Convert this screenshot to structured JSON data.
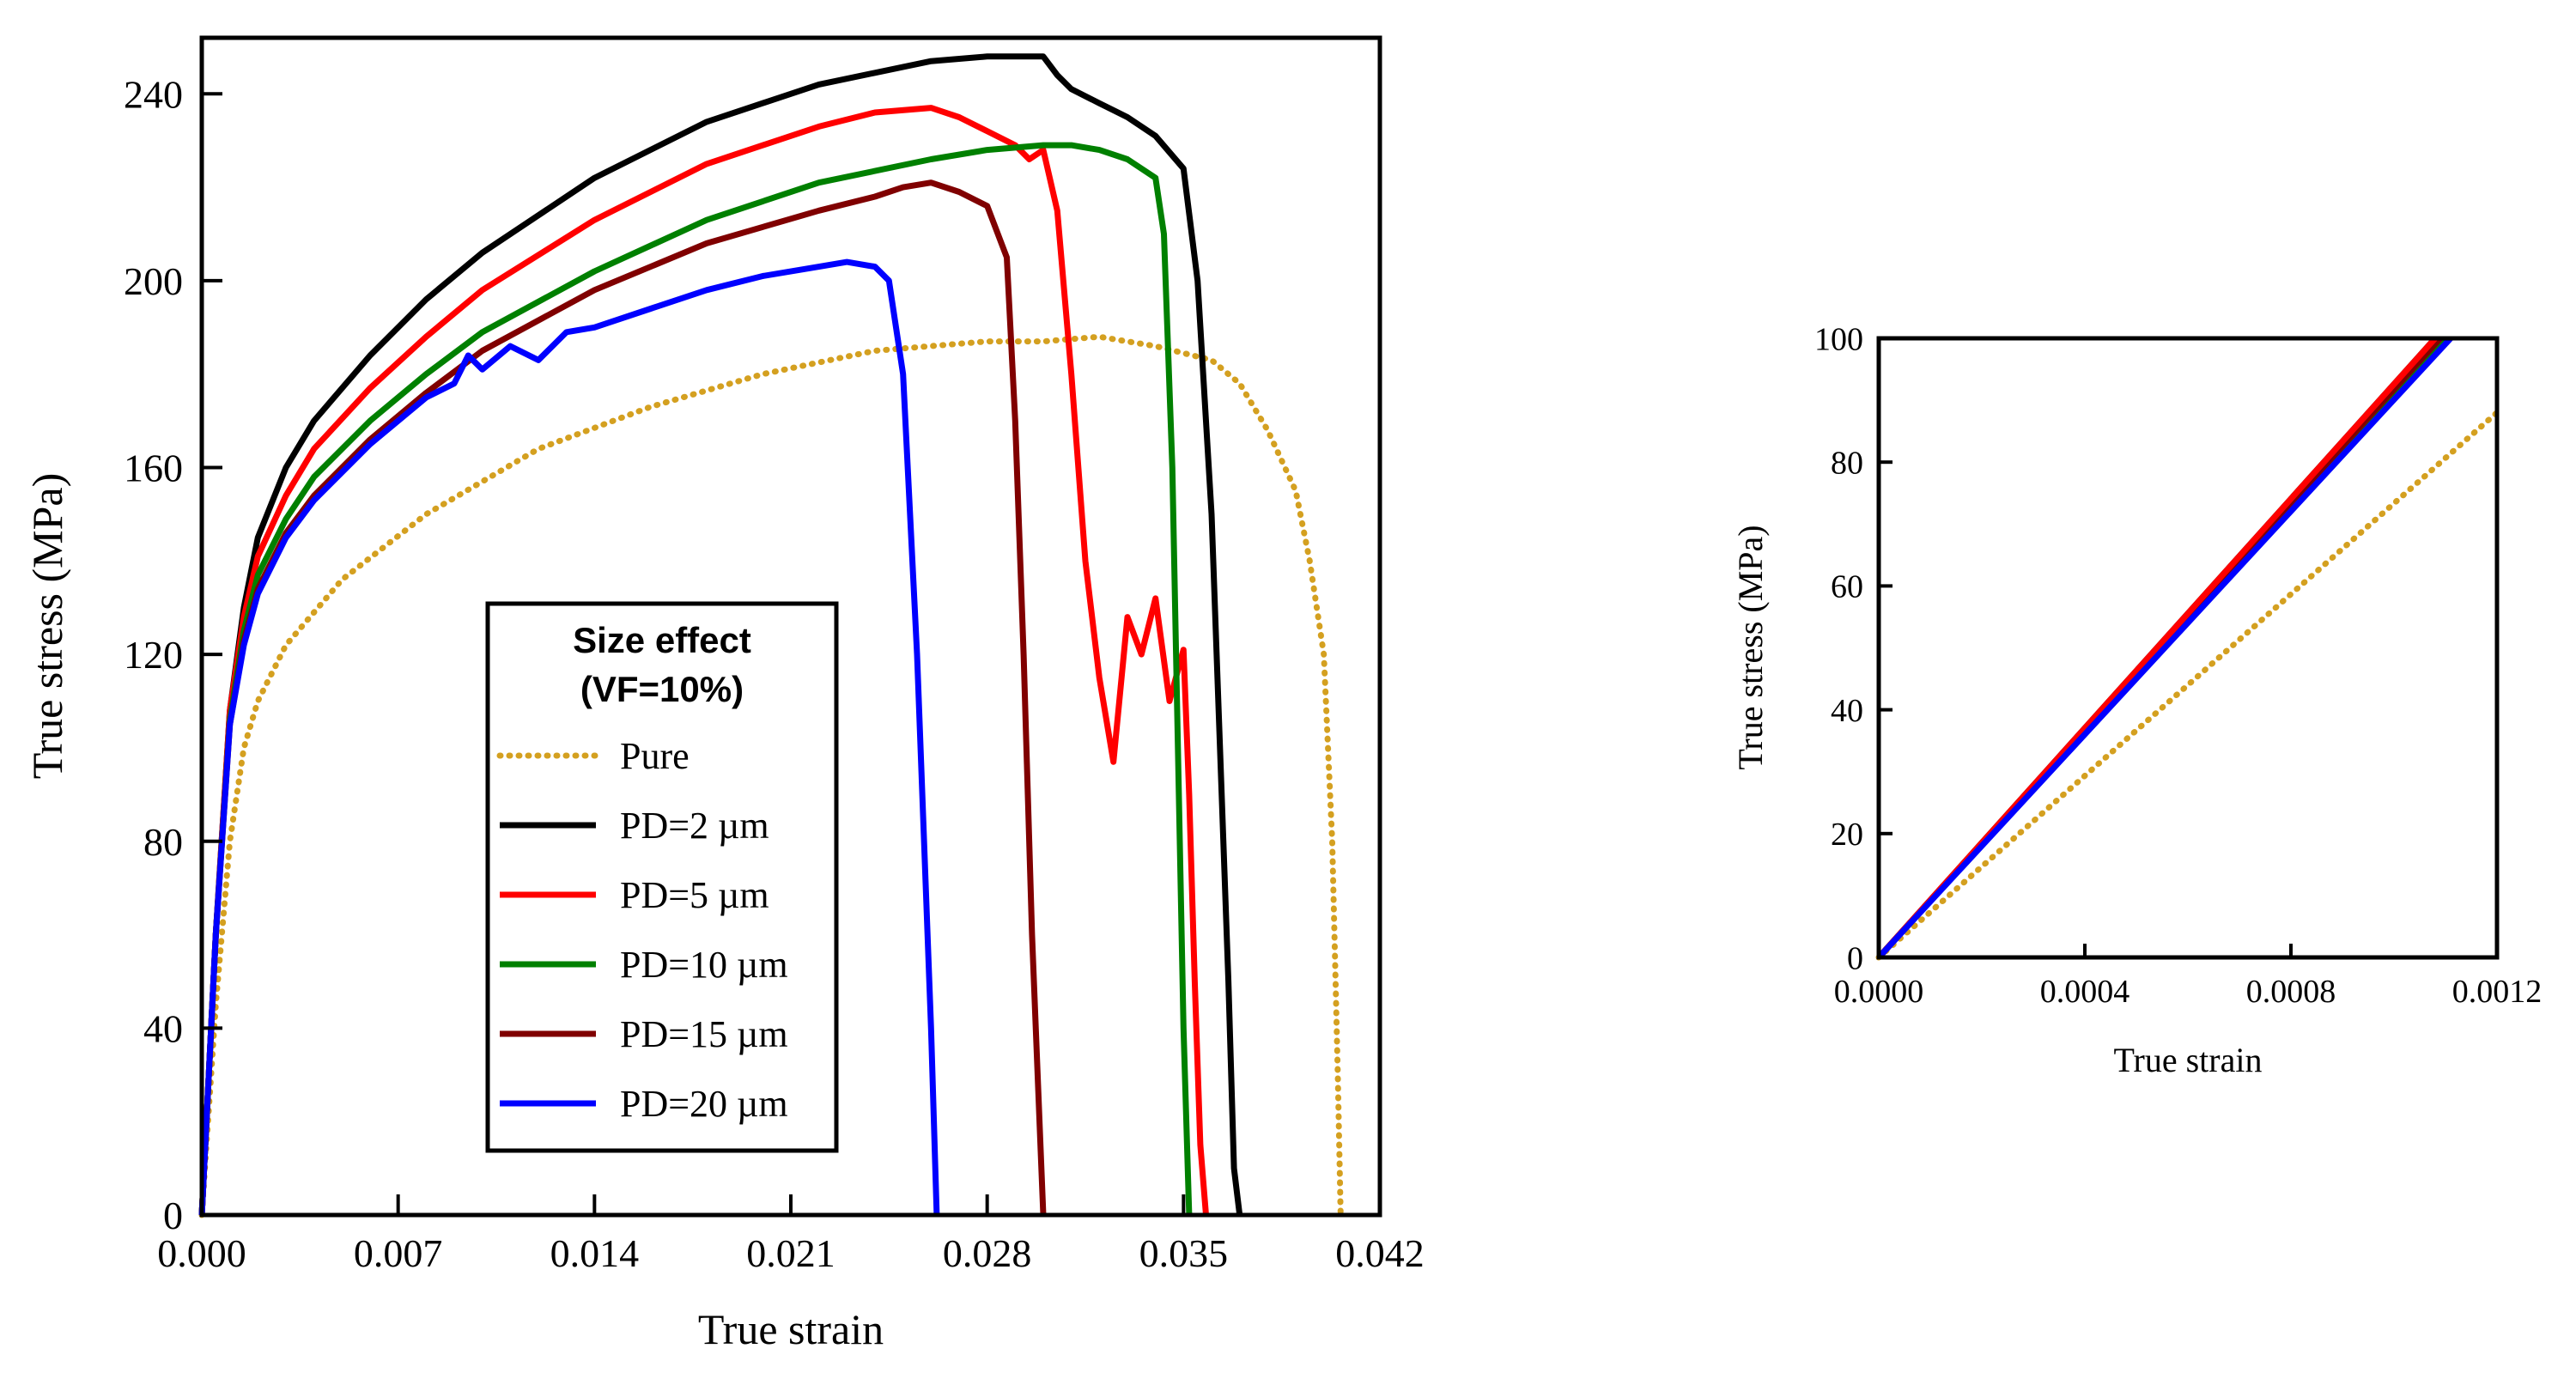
{
  "chart_data": [
    {
      "id": "main",
      "type": "line",
      "xlabel": "True strain",
      "ylabel": "True stress (MPa)",
      "xlim": [
        0,
        0.042
      ],
      "ylim": [
        0,
        252
      ],
      "xticks": [
        0,
        0.007,
        0.014,
        0.021,
        0.028,
        0.035,
        0.042
      ],
      "xtick_labels": [
        "0.000",
        "0.007",
        "0.014",
        "0.021",
        "0.028",
        "0.035",
        "0.042"
      ],
      "yticks": [
        0,
        40,
        80,
        120,
        160,
        200,
        240
      ],
      "ytick_labels": [
        "0",
        "40",
        "80",
        "120",
        "160",
        "200",
        "240"
      ],
      "grid": false,
      "legend": {
        "title_line1": "Size effect",
        "title_line2": "(VF=10%)",
        "placement": "center"
      },
      "series": [
        {
          "name": "Pure",
          "color": "#D4A020",
          "dashed": true,
          "x": [
            0,
            0.0005,
            0.001,
            0.0015,
            0.002,
            0.003,
            0.005,
            0.008,
            0.012,
            0.016,
            0.02,
            0.024,
            0.028,
            0.03,
            0.032,
            0.034,
            0.036,
            0.037,
            0.038,
            0.039,
            0.0395,
            0.04,
            0.0403,
            0.0405,
            0.0406
          ],
          "y": [
            0,
            45,
            80,
            100,
            110,
            122,
            136,
            150,
            164,
            173,
            180,
            185,
            187,
            187,
            188,
            186,
            183,
            178,
            168,
            155,
            140,
            120,
            80,
            30,
            0
          ]
        },
        {
          "name": "PD=2 µm",
          "color": "#000000",
          "dashed": false,
          "x": [
            0,
            0.0005,
            0.001,
            0.0015,
            0.002,
            0.003,
            0.004,
            0.006,
            0.008,
            0.01,
            0.014,
            0.018,
            0.022,
            0.026,
            0.028,
            0.03,
            0.0305,
            0.031,
            0.032,
            0.033,
            0.034,
            0.035,
            0.0355,
            0.036,
            0.0363,
            0.0366,
            0.0368,
            0.037
          ],
          "y": [
            0,
            60,
            108,
            130,
            145,
            160,
            170,
            184,
            196,
            206,
            222,
            234,
            242,
            247,
            248,
            248,
            244,
            241,
            238,
            235,
            231,
            224,
            200,
            150,
            100,
            50,
            10,
            0
          ]
        },
        {
          "name": "PD=5 µm",
          "color": "#FF0000",
          "dashed": false,
          "x": [
            0,
            0.0005,
            0.001,
            0.0015,
            0.002,
            0.003,
            0.004,
            0.006,
            0.008,
            0.01,
            0.014,
            0.018,
            0.022,
            0.024,
            0.026,
            0.027,
            0.028,
            0.029,
            0.0295,
            0.03,
            0.0305,
            0.031,
            0.0315,
            0.032,
            0.0325,
            0.033,
            0.0335,
            0.034,
            0.0345,
            0.035,
            0.0352,
            0.0354,
            0.0356,
            0.0358
          ],
          "y": [
            0,
            60,
            108,
            128,
            141,
            154,
            164,
            177,
            188,
            198,
            213,
            225,
            233,
            236,
            237,
            235,
            232,
            229,
            226,
            228,
            215,
            180,
            140,
            115,
            97,
            128,
            120,
            132,
            110,
            121,
            90,
            50,
            15,
            0
          ]
        },
        {
          "name": "PD=10 µm",
          "color": "#008000",
          "dashed": false,
          "x": [
            0,
            0.0005,
            0.001,
            0.0015,
            0.002,
            0.003,
            0.004,
            0.006,
            0.008,
            0.01,
            0.014,
            0.018,
            0.022,
            0.026,
            0.028,
            0.03,
            0.031,
            0.032,
            0.033,
            0.034,
            0.0343,
            0.0346,
            0.0348,
            0.035,
            0.0352
          ],
          "y": [
            0,
            60,
            106,
            125,
            137,
            149,
            158,
            170,
            180,
            189,
            202,
            213,
            221,
            226,
            228,
            229,
            229,
            228,
            226,
            222,
            210,
            160,
            100,
            40,
            0
          ]
        },
        {
          "name": "PD=15 µm",
          "color": "#800000",
          "dashed": false,
          "x": [
            0,
            0.0005,
            0.001,
            0.0015,
            0.002,
            0.003,
            0.004,
            0.006,
            0.008,
            0.01,
            0.014,
            0.018,
            0.022,
            0.024,
            0.025,
            0.026,
            0.027,
            0.028,
            0.0287,
            0.029,
            0.0293,
            0.0296,
            0.0299,
            0.03
          ],
          "y": [
            0,
            60,
            105,
            123,
            134,
            146,
            154,
            166,
            176,
            185,
            198,
            208,
            215,
            218,
            220,
            221,
            219,
            216,
            205,
            170,
            120,
            60,
            15,
            0
          ]
        },
        {
          "name": "PD=20 µm",
          "color": "#0000FF",
          "dashed": false,
          "x": [
            0,
            0.0005,
            0.001,
            0.0015,
            0.002,
            0.003,
            0.004,
            0.006,
            0.008,
            0.009,
            0.0095,
            0.01,
            0.011,
            0.012,
            0.013,
            0.014,
            0.016,
            0.018,
            0.02,
            0.022,
            0.023,
            0.024,
            0.0245,
            0.025,
            0.0255,
            0.026,
            0.0262
          ],
          "y": [
            0,
            60,
            105,
            122,
            133,
            145,
            153,
            165,
            175,
            178,
            184,
            181,
            186,
            183,
            189,
            190,
            194,
            198,
            201,
            203,
            204,
            203,
            200,
            180,
            120,
            40,
            0
          ]
        }
      ]
    },
    {
      "id": "inset",
      "type": "line",
      "xlabel": "True strain",
      "ylabel": "True stress (MPa)",
      "xlim": [
        0,
        0.0012
      ],
      "ylim": [
        0,
        100
      ],
      "xticks": [
        0,
        0.0004,
        0.0008,
        0.0012
      ],
      "xtick_labels": [
        "0.0000",
        "0.0004",
        "0.0008",
        "0.0012"
      ],
      "yticks": [
        0,
        20,
        40,
        60,
        80,
        100
      ],
      "ytick_labels": [
        "0",
        "20",
        "40",
        "60",
        "80",
        "100"
      ],
      "grid": false,
      "series": [
        {
          "name": "Pure",
          "color": "#D4A020",
          "dashed": true,
          "x": [
            0,
            0.0012
          ],
          "y": [
            0,
            88
          ]
        },
        {
          "name": "PD=2 µm",
          "color": "#000000",
          "dashed": false,
          "x": [
            0,
            0.00108
          ],
          "y": [
            0,
            100
          ]
        },
        {
          "name": "PD=5 µm",
          "color": "#FF0000",
          "dashed": false,
          "x": [
            0,
            0.00108
          ],
          "y": [
            0,
            100
          ]
        },
        {
          "name": "PD=10 µm",
          "color": "#008000",
          "dashed": false,
          "x": [
            0,
            0.0011
          ],
          "y": [
            0,
            100
          ]
        },
        {
          "name": "PD=15 µm",
          "color": "#800000",
          "dashed": false,
          "x": [
            0,
            0.00109
          ],
          "y": [
            0,
            100
          ]
        },
        {
          "name": "PD=20 µm",
          "color": "#0000FF",
          "dashed": false,
          "x": [
            0,
            0.00111
          ],
          "y": [
            0,
            100
          ]
        }
      ]
    }
  ]
}
